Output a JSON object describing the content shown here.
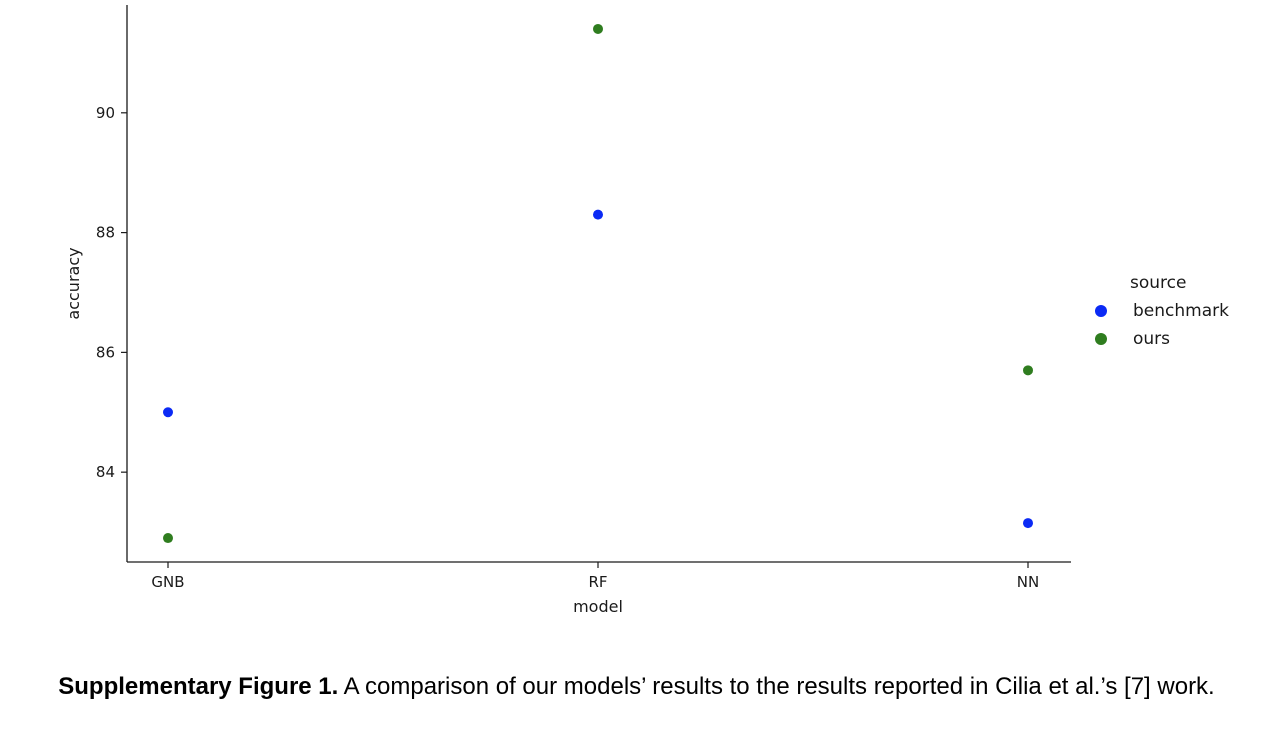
{
  "chart_data": {
    "type": "scatter",
    "xlabel": "model",
    "ylabel": "accuracy",
    "categories": [
      "GNB",
      "RF",
      "NN"
    ],
    "yticks": [
      84,
      86,
      88,
      90
    ],
    "ylim": [
      82.5,
      91.8
    ],
    "grid": false,
    "legend": {
      "title": "source",
      "placement": "right"
    },
    "series": [
      {
        "name": "benchmark",
        "color": "#0b2af5",
        "values": [
          85.0,
          88.3,
          83.15
        ]
      },
      {
        "name": "ours",
        "color": "#2f7d1f",
        "values": [
          82.9,
          91.4,
          85.7
        ]
      }
    ]
  },
  "caption": {
    "lead": "Supplementary Figure 1.",
    "text": " A comparison of our models’ results to the results reported in Cilia et al.’s [7] work."
  }
}
